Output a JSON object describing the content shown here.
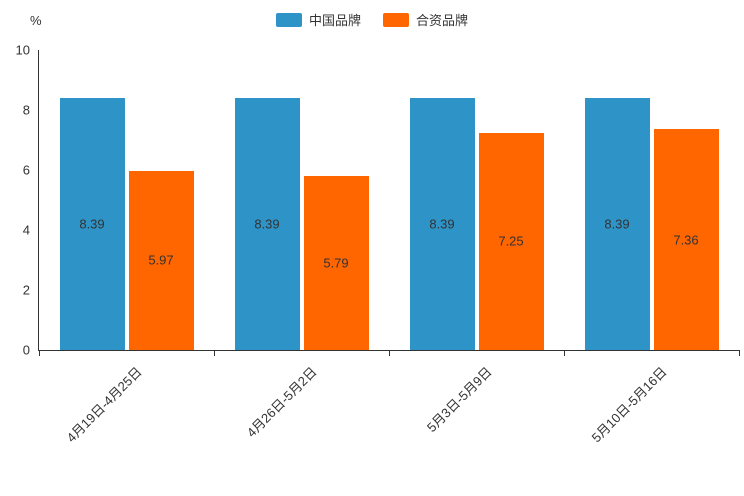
{
  "chart_data": {
    "type": "bar",
    "title": "",
    "categories": [
      "4月19日-4月25日",
      "4月26日-5月2日",
      "5月3日-5月9日",
      "5月10日-5月16日"
    ],
    "series": [
      {
        "name": "中国品牌",
        "color": "#2E94C8",
        "values": [
          8.39,
          8.39,
          8.39,
          8.39
        ]
      },
      {
        "name": "合资品牌",
        "color": "#FF6600",
        "values": [
          5.97,
          5.79,
          7.25,
          7.36
        ]
      }
    ],
    "xlabel": "",
    "ylabel": "",
    "ylabel_unit": "%",
    "ylim": [
      0,
      10
    ],
    "ytick_step": 2,
    "yticks": [
      0,
      2,
      4,
      6,
      8,
      10
    ],
    "grid": false,
    "legend_position": "top-center",
    "value_labels": "inside-middle",
    "value_label_color": "#333333",
    "axis_color": "#333333",
    "background_color": "#ffffff"
  }
}
